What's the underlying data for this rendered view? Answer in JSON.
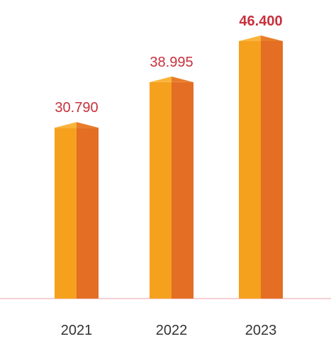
{
  "chart_data": {
    "type": "bar",
    "categories": [
      "2021",
      "2022",
      "2023"
    ],
    "values": [
      30790,
      38995,
      46400
    ],
    "value_labels": [
      "30.790",
      "38.995",
      "46.400"
    ],
    "highlight_index": 2,
    "title": "",
    "xlabel": "",
    "ylabel": "",
    "ylim": [
      0,
      46400
    ],
    "grid": false,
    "legend": "none"
  },
  "colors": {
    "bar_front": "#F5A11E",
    "bar_side": "#E36E24",
    "bar_top_left": "#F9B43C",
    "bar_top_right": "#E87C2A",
    "value_label": "#C8303C",
    "baseline": "#E8A0A8",
    "tick_label": "#333333"
  }
}
